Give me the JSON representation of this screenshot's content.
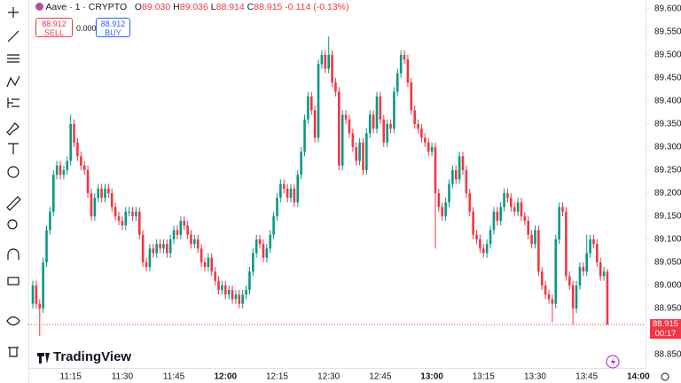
{
  "header": {
    "symbol": "Aave · 1 · CRYPTO",
    "o_label": "O",
    "o": "89.030",
    "h_label": "H",
    "h": "89.036",
    "l_label": "L",
    "l": "88.914",
    "c_label": "C",
    "c": "88.915",
    "change": "-0.114 (-0.13%)"
  },
  "trade": {
    "sell_price": "88.912",
    "sell": "SELL",
    "spread": "0.000",
    "buy_price": "88.912",
    "buy": "BUY"
  },
  "price_tag": {
    "price": "88.915",
    "countdown": "00:17"
  },
  "logo": "TradingView",
  "chart_data": {
    "type": "candlestick",
    "up_color": "#089981",
    "down_color": "#f23645",
    "ylim": [
      88.821,
      89.619
    ],
    "yticks": [
      {
        "value": 89.6,
        "label": "89.600"
      },
      {
        "value": 89.55,
        "label": "89.550"
      },
      {
        "value": 89.5,
        "label": "89.500"
      },
      {
        "value": 89.45,
        "label": "89.450"
      },
      {
        "value": 89.4,
        "label": "89.400"
      },
      {
        "value": 89.35,
        "label": "89.350"
      },
      {
        "value": 89.3,
        "label": "89.300"
      },
      {
        "value": 89.25,
        "label": "89.250"
      },
      {
        "value": 89.2,
        "label": "89.200"
      },
      {
        "value": 89.15,
        "label": "89.150"
      },
      {
        "value": 89.1,
        "label": "89.100"
      },
      {
        "value": 89.05,
        "label": "89.050"
      },
      {
        "value": 89.0,
        "label": "89.000"
      },
      {
        "value": 88.95,
        "label": "88.950"
      },
      {
        "value": 88.85,
        "label": "88.850"
      }
    ],
    "categories": [
      null,
      null,
      null,
      null,
      null,
      null,
      null,
      null,
      null,
      null,
      null,
      "11:15",
      null,
      null,
      null,
      null,
      null,
      null,
      null,
      null,
      null,
      null,
      null,
      null,
      null,
      null,
      "11:30",
      null,
      null,
      null,
      null,
      null,
      null,
      null,
      null,
      null,
      null,
      null,
      null,
      null,
      null,
      "11:45",
      null,
      null,
      null,
      null,
      null,
      null,
      null,
      null,
      null,
      null,
      null,
      null,
      null,
      null,
      "12:00",
      null,
      null,
      null,
      null,
      null,
      null,
      null,
      null,
      null,
      null,
      null,
      null,
      null,
      null,
      "12:15",
      null,
      null,
      null,
      null,
      null,
      null,
      null,
      null,
      null,
      null,
      null,
      null,
      null,
      null,
      "12:30",
      null,
      null,
      null,
      null,
      null,
      null,
      null,
      null,
      null,
      null,
      null,
      null,
      null,
      null,
      "12:45",
      null,
      null,
      null,
      null,
      null,
      null,
      null,
      null,
      null,
      null,
      null,
      null,
      null,
      null,
      "13:00",
      null,
      null,
      null,
      null,
      null,
      null,
      null,
      null,
      null,
      null,
      null,
      null,
      null,
      null,
      "13:15",
      null,
      null,
      null,
      null,
      null,
      null,
      null,
      null,
      null,
      null,
      null,
      null,
      null,
      null,
      "13:30",
      null,
      null,
      null,
      null,
      null,
      null,
      null,
      null,
      null,
      null,
      null,
      null,
      null,
      null,
      "13:45",
      null,
      null,
      null,
      null,
      null,
      null,
      null,
      null,
      null,
      null,
      null,
      null,
      null,
      null,
      "14:00"
    ],
    "ohlc": [
      [
        88.96,
        89.01,
        88.95,
        89.0
      ],
      [
        89.0,
        89.01,
        88.95,
        88.96
      ],
      [
        88.96,
        88.97,
        88.89,
        88.95
      ],
      [
        88.95,
        89.06,
        88.94,
        89.05
      ],
      [
        89.05,
        89.13,
        89.04,
        89.12
      ],
      [
        89.12,
        89.17,
        89.11,
        89.16
      ],
      [
        89.16,
        89.25,
        89.15,
        89.24
      ],
      [
        89.24,
        89.27,
        89.23,
        89.26
      ],
      [
        89.26,
        89.27,
        89.23,
        89.24
      ],
      [
        89.24,
        89.26,
        89.23,
        89.25
      ],
      [
        89.25,
        89.28,
        89.24,
        89.27
      ],
      [
        89.27,
        89.37,
        89.26,
        89.35
      ],
      [
        89.35,
        89.36,
        89.3,
        89.31
      ],
      [
        89.31,
        89.32,
        89.27,
        89.28
      ],
      [
        89.28,
        89.29,
        89.25,
        89.26
      ],
      [
        89.26,
        89.27,
        89.24,
        89.25
      ],
      [
        89.25,
        89.26,
        89.19,
        89.2
      ],
      [
        89.2,
        89.21,
        89.14,
        89.15
      ],
      [
        89.15,
        89.2,
        89.14,
        89.19
      ],
      [
        89.19,
        89.22,
        89.18,
        89.21
      ],
      [
        89.21,
        89.22,
        89.18,
        89.19
      ],
      [
        89.19,
        89.22,
        89.18,
        89.21
      ],
      [
        89.21,
        89.22,
        89.19,
        89.2
      ],
      [
        89.2,
        89.21,
        89.16,
        89.17
      ],
      [
        89.17,
        89.18,
        89.14,
        89.15
      ],
      [
        89.15,
        89.16,
        89.13,
        89.14
      ],
      [
        89.14,
        89.15,
        89.12,
        89.13
      ],
      [
        89.13,
        89.17,
        89.12,
        89.16
      ],
      [
        89.16,
        89.17,
        89.15,
        89.16
      ],
      [
        89.16,
        89.17,
        89.14,
        89.15
      ],
      [
        89.15,
        89.17,
        89.14,
        89.16
      ],
      [
        89.16,
        89.17,
        89.1,
        89.11
      ],
      [
        89.11,
        89.12,
        89.04,
        89.05
      ],
      [
        89.05,
        89.06,
        89.03,
        89.04
      ],
      [
        89.04,
        89.09,
        89.03,
        89.08
      ],
      [
        89.08,
        89.09,
        89.06,
        89.07
      ],
      [
        89.07,
        89.1,
        89.06,
        89.09
      ],
      [
        89.09,
        89.1,
        89.07,
        89.08
      ],
      [
        89.08,
        89.1,
        89.07,
        89.09
      ],
      [
        89.09,
        89.1,
        89.06,
        89.07
      ],
      [
        89.07,
        89.11,
        89.06,
        89.1
      ],
      [
        89.1,
        89.13,
        89.09,
        89.12
      ],
      [
        89.12,
        89.13,
        89.1,
        89.11
      ],
      [
        89.11,
        89.15,
        89.1,
        89.14
      ],
      [
        89.14,
        89.15,
        89.12,
        89.13
      ],
      [
        89.13,
        89.14,
        89.1,
        89.11
      ],
      [
        89.11,
        89.12,
        89.08,
        89.09
      ],
      [
        89.09,
        89.11,
        89.08,
        89.1
      ],
      [
        89.1,
        89.11,
        89.07,
        89.08
      ],
      [
        89.08,
        89.09,
        89.04,
        89.05
      ],
      [
        89.05,
        89.06,
        89.03,
        89.04
      ],
      [
        89.04,
        89.07,
        89.03,
        89.06
      ],
      [
        89.06,
        89.07,
        89.02,
        89.03
      ],
      [
        89.03,
        89.04,
        89.0,
        89.01
      ],
      [
        89.01,
        89.02,
        88.98,
        88.99
      ],
      [
        88.99,
        89.01,
        88.98,
        89.0
      ],
      [
        89.0,
        89.01,
        88.97,
        88.98
      ],
      [
        88.98,
        89.0,
        88.97,
        88.99
      ],
      [
        88.99,
        89.0,
        88.96,
        88.97
      ],
      [
        88.97,
        88.99,
        88.96,
        88.98
      ],
      [
        88.98,
        88.99,
        88.95,
        88.96
      ],
      [
        88.96,
        88.99,
        88.95,
        88.98
      ],
      [
        88.98,
        89.0,
        88.97,
        88.99
      ],
      [
        88.99,
        89.04,
        88.98,
        89.03
      ],
      [
        89.03,
        89.08,
        89.02,
        89.07
      ],
      [
        89.07,
        89.11,
        89.06,
        89.1
      ],
      [
        89.1,
        89.11,
        89.08,
        89.09
      ],
      [
        89.09,
        89.1,
        89.05,
        89.06
      ],
      [
        89.06,
        89.09,
        89.05,
        89.08
      ],
      [
        89.08,
        89.12,
        89.07,
        89.11
      ],
      [
        89.11,
        89.16,
        89.1,
        89.15
      ],
      [
        89.15,
        89.2,
        89.14,
        89.19
      ],
      [
        89.19,
        89.23,
        89.18,
        89.22
      ],
      [
        89.22,
        89.23,
        89.2,
        89.21
      ],
      [
        89.21,
        89.22,
        89.18,
        89.19
      ],
      [
        89.19,
        89.22,
        89.18,
        89.21
      ],
      [
        89.21,
        89.22,
        89.17,
        89.18
      ],
      [
        89.18,
        89.25,
        89.17,
        89.24
      ],
      [
        89.24,
        89.3,
        89.23,
        89.29
      ],
      [
        89.29,
        89.37,
        89.28,
        89.36
      ],
      [
        89.36,
        89.42,
        89.35,
        89.41
      ],
      [
        89.41,
        89.42,
        89.37,
        89.38
      ],
      [
        89.38,
        89.39,
        89.31,
        89.32
      ],
      [
        89.32,
        89.49,
        89.31,
        89.48
      ],
      [
        89.48,
        89.51,
        89.47,
        89.5
      ],
      [
        89.5,
        89.51,
        89.46,
        89.47
      ],
      [
        89.47,
        89.54,
        89.46,
        89.5
      ],
      [
        89.5,
        89.51,
        89.43,
        89.44
      ],
      [
        89.44,
        89.45,
        89.41,
        89.42
      ],
      [
        89.42,
        89.43,
        89.25,
        89.26
      ],
      [
        89.26,
        89.38,
        89.25,
        89.37
      ],
      [
        89.37,
        89.38,
        89.35,
        89.36
      ],
      [
        89.36,
        89.37,
        89.32,
        89.33
      ],
      [
        89.33,
        89.34,
        89.29,
        89.3
      ],
      [
        89.3,
        89.31,
        89.26,
        89.27
      ],
      [
        89.27,
        89.32,
        89.26,
        89.31
      ],
      [
        89.31,
        89.32,
        89.24,
        89.25
      ],
      [
        89.25,
        89.34,
        89.24,
        89.33
      ],
      [
        89.33,
        89.38,
        89.32,
        89.37
      ],
      [
        89.37,
        89.38,
        89.33,
        89.34
      ],
      [
        89.34,
        89.42,
        89.33,
        89.41
      ],
      [
        89.41,
        89.42,
        89.35,
        89.36
      ],
      [
        89.36,
        89.37,
        89.3,
        89.31
      ],
      [
        89.31,
        89.36,
        89.3,
        89.35
      ],
      [
        89.35,
        89.36,
        89.33,
        89.34
      ],
      [
        89.34,
        89.43,
        89.33,
        89.42
      ],
      [
        89.42,
        89.47,
        89.41,
        89.46
      ],
      [
        89.46,
        89.51,
        89.45,
        89.5
      ],
      [
        89.5,
        89.51,
        89.48,
        89.49
      ],
      [
        89.49,
        89.5,
        89.43,
        89.44
      ],
      [
        89.44,
        89.45,
        89.37,
        89.38
      ],
      [
        89.38,
        89.39,
        89.34,
        89.35
      ],
      [
        89.35,
        89.36,
        89.33,
        89.34
      ],
      [
        89.34,
        89.35,
        89.31,
        89.32
      ],
      [
        89.32,
        89.33,
        89.3,
        89.31
      ],
      [
        89.31,
        89.32,
        89.28,
        89.29
      ],
      [
        89.29,
        89.31,
        89.28,
        89.3
      ],
      [
        89.3,
        89.31,
        89.08,
        89.2
      ],
      [
        89.2,
        89.21,
        89.16,
        89.17
      ],
      [
        89.17,
        89.18,
        89.14,
        89.15
      ],
      [
        89.15,
        89.19,
        89.14,
        89.18
      ],
      [
        89.18,
        89.23,
        89.17,
        89.22
      ],
      [
        89.22,
        89.26,
        89.21,
        89.25
      ],
      [
        89.25,
        89.26,
        89.22,
        89.23
      ],
      [
        89.23,
        89.29,
        89.22,
        89.28
      ],
      [
        89.28,
        89.29,
        89.24,
        89.25
      ],
      [
        89.25,
        89.26,
        89.19,
        89.2
      ],
      [
        89.2,
        89.21,
        89.15,
        89.16
      ],
      [
        89.16,
        89.17,
        89.1,
        89.11
      ],
      [
        89.11,
        89.12,
        89.09,
        89.1
      ],
      [
        89.1,
        89.11,
        89.07,
        89.08
      ],
      [
        89.08,
        89.09,
        89.06,
        89.07
      ],
      [
        89.07,
        89.1,
        89.06,
        89.09
      ],
      [
        89.09,
        89.13,
        89.08,
        89.12
      ],
      [
        89.12,
        89.17,
        89.11,
        89.16
      ],
      [
        89.16,
        89.17,
        89.13,
        89.14
      ],
      [
        89.14,
        89.18,
        89.13,
        89.17
      ],
      [
        89.17,
        89.21,
        89.16,
        89.2
      ],
      [
        89.2,
        89.21,
        89.18,
        89.19
      ],
      [
        89.19,
        89.2,
        89.16,
        89.17
      ],
      [
        89.17,
        89.18,
        89.15,
        89.16
      ],
      [
        89.16,
        89.19,
        89.15,
        89.18
      ],
      [
        89.18,
        89.19,
        89.14,
        89.15
      ],
      [
        89.15,
        89.16,
        89.13,
        89.14
      ],
      [
        89.14,
        89.15,
        89.1,
        89.11
      ],
      [
        89.11,
        89.12,
        89.08,
        89.09
      ],
      [
        89.09,
        89.13,
        89.08,
        89.12
      ],
      [
        89.12,
        89.13,
        89.02,
        89.03
      ],
      [
        89.03,
        89.04,
        88.99,
        89.0
      ],
      [
        89.0,
        89.01,
        88.97,
        88.98
      ],
      [
        88.98,
        88.99,
        88.96,
        88.97
      ],
      [
        88.97,
        88.98,
        88.92,
        88.96
      ],
      [
        88.96,
        89.11,
        88.95,
        89.1
      ],
      [
        89.1,
        89.18,
        89.09,
        89.17
      ],
      [
        89.17,
        89.18,
        89.15,
        89.16
      ],
      [
        89.16,
        89.17,
        89.01,
        89.02
      ],
      [
        89.02,
        89.03,
        88.99,
        89.0
      ],
      [
        89.0,
        89.01,
        88.915,
        88.95
      ],
      [
        88.95,
        89.01,
        88.94,
        89.0
      ],
      [
        89.0,
        89.05,
        88.99,
        89.04
      ],
      [
        89.04,
        89.05,
        89.02,
        89.03
      ],
      [
        89.03,
        89.11,
        89.02,
        89.07
      ],
      [
        89.07,
        89.11,
        89.06,
        89.1
      ],
      [
        89.1,
        89.11,
        89.08,
        89.09
      ],
      [
        89.09,
        89.1,
        89.04,
        89.05
      ],
      [
        89.05,
        89.06,
        89.01,
        89.02
      ],
      [
        89.02,
        89.04,
        89.01,
        89.03
      ],
      [
        89.03,
        89.036,
        88.914,
        88.915
      ],
      null,
      null,
      null,
      null,
      null,
      null,
      null,
      null,
      null
    ]
  }
}
